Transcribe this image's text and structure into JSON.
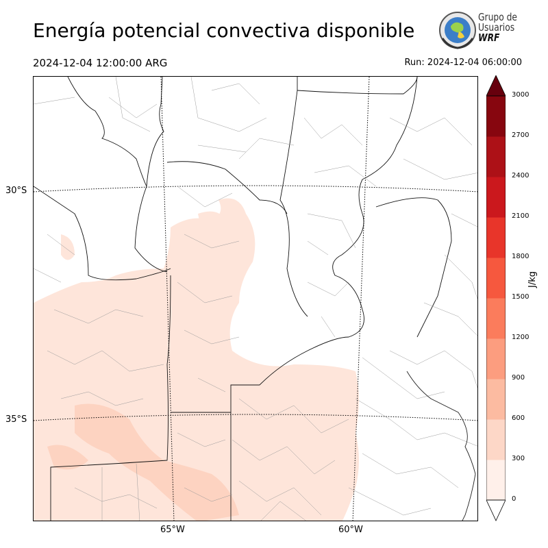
{
  "header": {
    "title": "Energía potencial convectiva disponible",
    "valid_time": "2024-12-04 12:00:00 ARG",
    "run_time": "Run: 2024-12-04 06:00:00"
  },
  "logo": {
    "line1": "Grupo de",
    "line2": "Usuarios",
    "line3": "WRF"
  },
  "map": {
    "lat_labels": [
      "30°S",
      "35°S"
    ],
    "lon_labels": [
      "65°W",
      "60°W"
    ],
    "shading_color": "#fee0d2",
    "boundary_color": "#000000"
  },
  "colorbar": {
    "unit": "J/kg",
    "ticks": [
      "0",
      "300",
      "600",
      "900",
      "1200",
      "1500",
      "1800",
      "2100",
      "2400",
      "2700",
      "3000"
    ],
    "colors": [
      "#fff0ea",
      "#fdd7c7",
      "#fcbba1",
      "#fc9d7f",
      "#fb7c5c",
      "#f6583e",
      "#e8352a",
      "#cb181d",
      "#ad1117",
      "#87060f",
      "#67000d"
    ]
  }
}
